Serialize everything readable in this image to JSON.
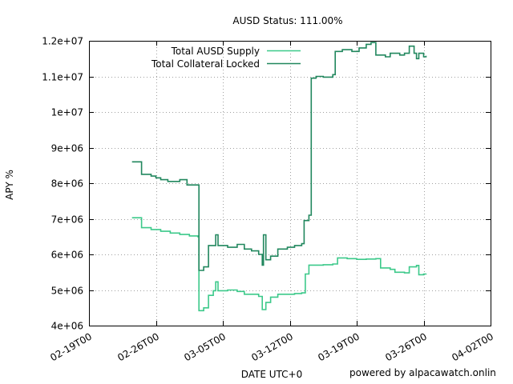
{
  "chart_data": {
    "type": "line",
    "title": "AUSD Status: 111.00%",
    "xlabel": "DATE UTC+0",
    "ylabel": "APY %",
    "x_range": [
      "2022-02-19",
      "2022-04-02"
    ],
    "ylim": [
      4000000,
      12000000
    ],
    "x_ticks": [
      "02-19T00",
      "02-26T00",
      "03-05T00",
      "03-12T00",
      "03-19T00",
      "03-26T00",
      "04-02T00"
    ],
    "y_ticks": [
      "4e+06",
      "5e+06",
      "6e+06",
      "7e+06",
      "8e+06",
      "9e+06",
      "1e+07",
      "1.1e+07",
      "1.2e+07"
    ],
    "y_tick_values": [
      4000000,
      5000000,
      6000000,
      7000000,
      8000000,
      9000000,
      10000000,
      11000000,
      12000000
    ],
    "grid": true,
    "legend_position": "top-left",
    "series": [
      {
        "name": "Total AUSD Supply",
        "color": "#3cc98a",
        "points": [
          [
            "2022-02-23T12:00",
            7030000
          ],
          [
            "2022-02-24T06:00",
            7030000
          ],
          [
            "2022-02-24T12:00",
            6750000
          ],
          [
            "2022-02-25T12:00",
            6700000
          ],
          [
            "2022-02-26T12:00",
            6650000
          ],
          [
            "2022-02-27T12:00",
            6600000
          ],
          [
            "2022-02-28T12:00",
            6560000
          ],
          [
            "2022-03-01T12:00",
            6520000
          ],
          [
            "2022-03-02T09:00",
            6500000
          ],
          [
            "2022-03-02T12:00",
            4420000
          ],
          [
            "2022-03-03T00:00",
            4500000
          ],
          [
            "2022-03-03T12:00",
            4850000
          ],
          [
            "2022-03-04T00:00",
            4980000
          ],
          [
            "2022-03-04T06:00",
            5230000
          ],
          [
            "2022-03-04T12:00",
            4980000
          ],
          [
            "2022-03-05T12:00",
            5000000
          ],
          [
            "2022-03-06T12:00",
            4960000
          ],
          [
            "2022-03-07T06:00",
            4880000
          ],
          [
            "2022-03-08T00:00",
            4880000
          ],
          [
            "2022-03-08T18:00",
            4820000
          ],
          [
            "2022-03-09T03:00",
            4450000
          ],
          [
            "2022-03-09T12:00",
            4650000
          ],
          [
            "2022-03-10T00:00",
            4800000
          ],
          [
            "2022-03-10T18:00",
            4880000
          ],
          [
            "2022-03-11T18:00",
            4880000
          ],
          [
            "2022-03-12T12:00",
            4900000
          ],
          [
            "2022-03-13T06:00",
            4920000
          ],
          [
            "2022-03-13T15:00",
            5450000
          ],
          [
            "2022-03-14T00:00",
            5700000
          ],
          [
            "2022-03-15T12:00",
            5710000
          ],
          [
            "2022-03-16T12:00",
            5730000
          ],
          [
            "2022-03-17T00:00",
            5900000
          ],
          [
            "2022-03-18T00:00",
            5880000
          ],
          [
            "2022-03-19T00:00",
            5860000
          ],
          [
            "2022-03-20T00:00",
            5870000
          ],
          [
            "2022-03-21T00:00",
            5880000
          ],
          [
            "2022-03-21T12:00",
            5620000
          ],
          [
            "2022-03-22T12:00",
            5580000
          ],
          [
            "2022-03-23T00:00",
            5500000
          ],
          [
            "2022-03-24T00:00",
            5480000
          ],
          [
            "2022-03-24T12:00",
            5650000
          ],
          [
            "2022-03-25T06:00",
            5690000
          ],
          [
            "2022-03-25T12:00",
            5430000
          ],
          [
            "2022-03-26T00:00",
            5450000
          ],
          [
            "2022-03-26T06:00",
            5460000
          ]
        ]
      },
      {
        "name": "Total Collateral Locked",
        "color": "#21875e",
        "points": [
          [
            "2022-02-23T12:00",
            8600000
          ],
          [
            "2022-02-24T06:00",
            8600000
          ],
          [
            "2022-02-24T12:00",
            8250000
          ],
          [
            "2022-02-25T12:00",
            8200000
          ],
          [
            "2022-02-26T00:00",
            8150000
          ],
          [
            "2022-02-26T12:00",
            8100000
          ],
          [
            "2022-02-27T06:00",
            8050000
          ],
          [
            "2022-02-28T12:00",
            8100000
          ],
          [
            "2022-03-01T06:00",
            7950000
          ],
          [
            "2022-03-02T09:00",
            7950000
          ],
          [
            "2022-03-02T12:00",
            5550000
          ],
          [
            "2022-03-03T00:00",
            5650000
          ],
          [
            "2022-03-03T12:00",
            6250000
          ],
          [
            "2022-03-04T00:00",
            6250000
          ],
          [
            "2022-03-04T06:00",
            6550000
          ],
          [
            "2022-03-04T12:00",
            6250000
          ],
          [
            "2022-03-05T12:00",
            6200000
          ],
          [
            "2022-03-06T12:00",
            6280000
          ],
          [
            "2022-03-07T06:00",
            6150000
          ],
          [
            "2022-03-08T00:00",
            6100000
          ],
          [
            "2022-03-08T18:00",
            6000000
          ],
          [
            "2022-03-09T03:00",
            5700000
          ],
          [
            "2022-03-09T06:00",
            6550000
          ],
          [
            "2022-03-09T12:00",
            5850000
          ],
          [
            "2022-03-10T00:00",
            5950000
          ],
          [
            "2022-03-10T18:00",
            6150000
          ],
          [
            "2022-03-11T18:00",
            6200000
          ],
          [
            "2022-03-12T12:00",
            6250000
          ],
          [
            "2022-03-13T06:00",
            6300000
          ],
          [
            "2022-03-13T12:00",
            6950000
          ],
          [
            "2022-03-14T00:00",
            7100000
          ],
          [
            "2022-03-14T06:00",
            10950000
          ],
          [
            "2022-03-14T18:00",
            11000000
          ],
          [
            "2022-03-15T12:00",
            10980000
          ],
          [
            "2022-03-16T12:00",
            11050000
          ],
          [
            "2022-03-16T18:00",
            11700000
          ],
          [
            "2022-03-17T12:00",
            11750000
          ],
          [
            "2022-03-18T12:00",
            11700000
          ],
          [
            "2022-03-19T06:00",
            11800000
          ],
          [
            "2022-03-20T00:00",
            11900000
          ],
          [
            "2022-03-20T12:00",
            11950000
          ],
          [
            "2022-03-21T00:00",
            11600000
          ],
          [
            "2022-03-22T00:00",
            11550000
          ],
          [
            "2022-03-22T12:00",
            11650000
          ],
          [
            "2022-03-23T12:00",
            11600000
          ],
          [
            "2022-03-24T00:00",
            11650000
          ],
          [
            "2022-03-24T12:00",
            11850000
          ],
          [
            "2022-03-25T00:00",
            11650000
          ],
          [
            "2022-03-25T06:00",
            11500000
          ],
          [
            "2022-03-25T12:00",
            11650000
          ],
          [
            "2022-03-26T00:00",
            11550000
          ],
          [
            "2022-03-26T06:00",
            11580000
          ]
        ]
      }
    ]
  },
  "footer": {
    "credit": "powered by alpacawatch.onlin"
  }
}
